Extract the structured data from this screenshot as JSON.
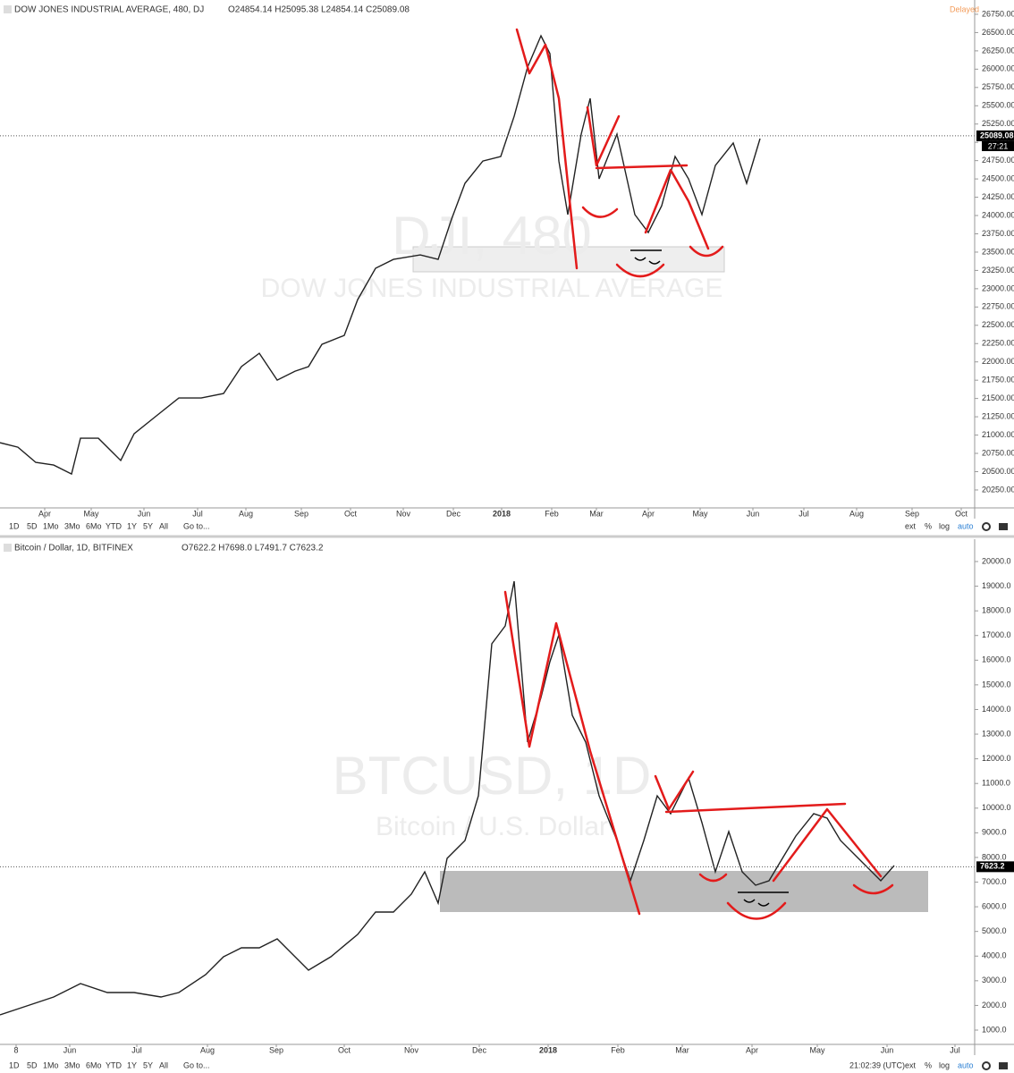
{
  "chart_data": [
    {
      "type": "line",
      "title": "DOW JONES INDUSTRIAL AVERAGE, 480, DJ",
      "ohlc": "O24854.14 H25095.38 L24854.14 C25089.08",
      "status": "Delayed",
      "watermark": "DJI, 480",
      "watermark_sub": "DOW JONES INDUSTRIAL AVERAGE",
      "color": "#222",
      "x": [
        0,
        10,
        20,
        30,
        40,
        45,
        55,
        67.5,
        75,
        87.5,
        100,
        112.5,
        125,
        135,
        145,
        155,
        165,
        172.5,
        180,
        192.5,
        200,
        210,
        220,
        235,
        245,
        252.5,
        260,
        270,
        280,
        287.5,
        295,
        302.5,
        307.5,
        312.5,
        317.5,
        325,
        330,
        335,
        345,
        355,
        362.5,
        370,
        377.5,
        385,
        392.5,
        400,
        410,
        417.5,
        425
      ],
      "values": [
        20896,
        20835,
        20627,
        20590,
        20468,
        20957,
        20957,
        20652,
        21018,
        21263,
        21507,
        21507,
        21568,
        21935,
        22118,
        21751,
        21873,
        21935,
        22240,
        22362,
        22851,
        23279,
        23401,
        23462,
        23401,
        23951,
        24440,
        24745,
        24807,
        25356,
        26028,
        26456,
        26212,
        24745,
        24012,
        25112,
        25601,
        24501,
        25112,
        24012,
        23768,
        24134,
        24807,
        24501,
        24012,
        24684,
        24990,
        24440,
        25051
      ],
      "xlim": [
        0,
        545
      ],
      "ylim": [
        20005,
        26945
      ],
      "xticks": [
        {
          "value": 25,
          "label": "Apr"
        },
        {
          "value": 51,
          "label": "May"
        },
        {
          "value": 80.5,
          "label": "Jun"
        },
        {
          "value": 110.5,
          "label": "Jul"
        },
        {
          "value": 137.5,
          "label": "Aug"
        },
        {
          "value": 168.5,
          "label": "Sep"
        },
        {
          "value": 196,
          "label": "Oct"
        },
        {
          "value": 225.5,
          "label": "Nov"
        },
        {
          "value": 253.5,
          "label": "Dec"
        },
        {
          "value": 280.5,
          "label": "2018"
        },
        {
          "value": 308.5,
          "label": "Feb"
        },
        {
          "value": 333.5,
          "label": "Mar"
        },
        {
          "value": 362.5,
          "label": "Apr"
        },
        {
          "value": 391.5,
          "label": "May"
        },
        {
          "value": 421,
          "label": "Jun"
        },
        {
          "value": 449.5,
          "label": "Jul"
        },
        {
          "value": 479,
          "label": "Aug"
        },
        {
          "value": 510,
          "label": "Sep"
        },
        {
          "value": 537.5,
          "label": "Oct"
        }
      ],
      "yticks": [
        {
          "value": 20250,
          "label": "20250.00"
        },
        {
          "value": 20500,
          "label": "20500.00"
        },
        {
          "value": 20750,
          "label": "20750.00"
        },
        {
          "value": 21000,
          "label": "21000.00"
        },
        {
          "value": 21250,
          "label": "21250.00"
        },
        {
          "value": 21500,
          "label": "21500.00"
        },
        {
          "value": 21750,
          "label": "21750.00"
        },
        {
          "value": 22000,
          "label": "22000.00"
        },
        {
          "value": 22250,
          "label": "22250.00"
        },
        {
          "value": 22500,
          "label": "22500.00"
        },
        {
          "value": 22750,
          "label": "22750.00"
        },
        {
          "value": 23000,
          "label": "23000.00"
        },
        {
          "value": 23250,
          "label": "23250.00"
        },
        {
          "value": 23500,
          "label": "23500.00"
        },
        {
          "value": 23750,
          "label": "23750.00"
        },
        {
          "value": 24000,
          "label": "24000.00"
        },
        {
          "value": 24250,
          "label": "24250.00"
        },
        {
          "value": 24500,
          "label": "24500.00"
        },
        {
          "value": 24750,
          "label": "24750.00"
        },
        {
          "value": 25000,
          "label": "25000.00"
        },
        {
          "value": 25250,
          "label": "25250.00"
        },
        {
          "value": 25500,
          "label": "25500.00"
        },
        {
          "value": 25750,
          "label": "25750.00"
        },
        {
          "value": 26000,
          "label": "26000.00"
        },
        {
          "value": 26250,
          "label": "26250.00"
        },
        {
          "value": 26500,
          "label": "26500.00"
        },
        {
          "value": 26750,
          "label": "26750.00"
        }
      ],
      "last_price": {
        "value": 25089.08,
        "label": "25089.08"
      },
      "countdown": "27:21"
    },
    {
      "type": "line",
      "title": "Bitcoin / Dollar, 1D, BITFINEX",
      "ohlc": "O7622.2 H7698.0 L7491.7 C7623.2",
      "watermark": "BTCUSD, 1D",
      "watermark_sub": "Bitcoin / U.S. Dollar",
      "color": "#222",
      "x": [
        0,
        12,
        24,
        36,
        48,
        60,
        72,
        80,
        92,
        100,
        108,
        116,
        124,
        132,
        138,
        148,
        160,
        168,
        176,
        184,
        190,
        196,
        200,
        208,
        214,
        220,
        226,
        230,
        236,
        242,
        246,
        250,
        256,
        262,
        268,
        276,
        282,
        288,
        294,
        300,
        308,
        314,
        320,
        326,
        332,
        338,
        344,
        350,
        356,
        364,
        370,
        376,
        384,
        394,
        400
      ],
      "values": [
        1616,
        1978,
        2341,
        2885,
        2522,
        2522,
        2341,
        2522,
        3247,
        3972,
        4335,
        4335,
        4698,
        3972,
        3428,
        3972,
        4879,
        5786,
        5786,
        6511,
        7418,
        6148,
        7962,
        8687,
        10500,
        16664,
        17389,
        19202,
        12675,
        14488,
        15938,
        17026,
        13763,
        12675,
        10500,
        8687,
        7055,
        8687,
        10500,
        9775,
        11226,
        9412,
        7418,
        9050,
        7418,
        6874,
        7055,
        7962,
        8868,
        9775,
        9594,
        8687,
        7962,
        7055,
        7671
      ],
      "xlim": [
        0,
        436
      ],
      "ylim": [
        420,
        20906
      ],
      "xticks": [
        {
          "value": 7.2,
          "label": "8"
        },
        {
          "value": 31.2,
          "label": "Jun"
        },
        {
          "value": 61.2,
          "label": "Jul"
        },
        {
          "value": 92.8,
          "label": "Aug"
        },
        {
          "value": 123.6,
          "label": "Sep"
        },
        {
          "value": 154,
          "label": "Oct"
        },
        {
          "value": 184,
          "label": "Nov"
        },
        {
          "value": 214.4,
          "label": "Dec"
        },
        {
          "value": 245.2,
          "label": "2018"
        },
        {
          "value": 276.4,
          "label": "Feb"
        },
        {
          "value": 305.2,
          "label": "Mar"
        },
        {
          "value": 336.4,
          "label": "Apr"
        },
        {
          "value": 365.6,
          "label": "May"
        },
        {
          "value": 396.8,
          "label": "Jun"
        },
        {
          "value": 427.2,
          "label": "Jul"
        }
      ],
      "yticks": [
        {
          "value": 1000,
          "label": "1000.0"
        },
        {
          "value": 2000,
          "label": "2000.0"
        },
        {
          "value": 3000,
          "label": "3000.0"
        },
        {
          "value": 4000,
          "label": "4000.0"
        },
        {
          "value": 5000,
          "label": "5000.0"
        },
        {
          "value": 6000,
          "label": "6000.0"
        },
        {
          "value": 7000,
          "label": "7000.0"
        },
        {
          "value": 8000,
          "label": "8000.0"
        },
        {
          "value": 9000,
          "label": "9000.0"
        },
        {
          "value": 10000,
          "label": "10000.0"
        },
        {
          "value": 11000,
          "label": "11000.0"
        },
        {
          "value": 12000,
          "label": "12000.0"
        },
        {
          "value": 13000,
          "label": "13000.0"
        },
        {
          "value": 14000,
          "label": "14000.0"
        },
        {
          "value": 15000,
          "label": "15000.0"
        },
        {
          "value": 16000,
          "label": "16000.0"
        },
        {
          "value": 17000,
          "label": "17000.0"
        },
        {
          "value": 18000,
          "label": "18000.0"
        },
        {
          "value": 19000,
          "label": "19000.0"
        },
        {
          "value": 20000,
          "label": "20000.0"
        }
      ],
      "last_price": {
        "value": 7623.2,
        "label": "7623.2"
      }
    }
  ],
  "toolbars": [
    {
      "ranges": [
        "1D",
        "5D",
        "1Mo",
        "3Mo",
        "6Mo",
        "YTD",
        "1Y",
        "5Y",
        "All",
        "Go to..."
      ],
      "options": [
        "ext",
        "%",
        "log",
        "auto"
      ]
    },
    {
      "ranges": [
        "1D",
        "5D",
        "1Mo",
        "3Mo",
        "6Mo",
        "YTD",
        "1Y",
        "5Y",
        "All",
        "Go to..."
      ],
      "time": "21:02:39 (UTC)",
      "options": [
        "ext",
        "%",
        "log",
        "auto"
      ]
    }
  ]
}
